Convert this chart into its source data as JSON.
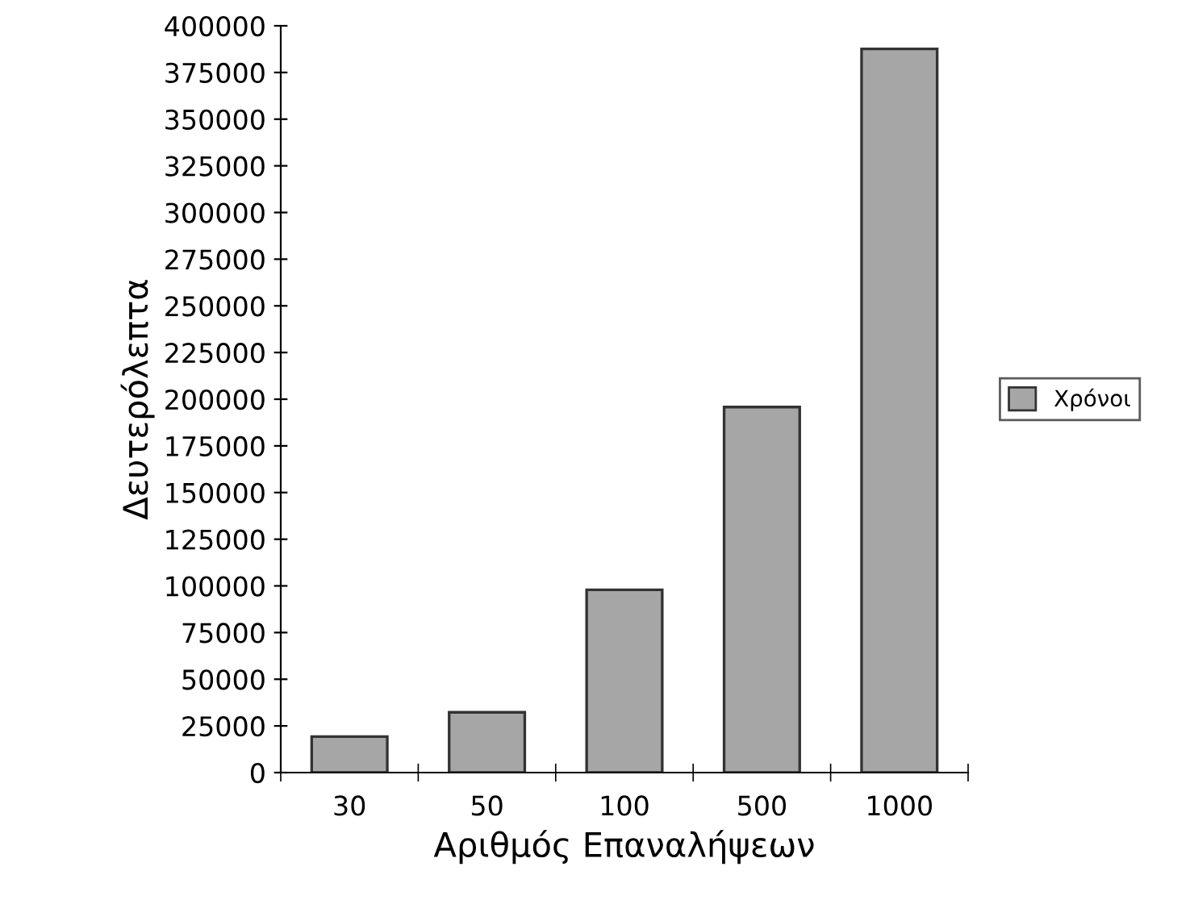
{
  "chart_data": {
    "type": "bar",
    "xlabel": "Αριθμός Επαναλήψεων",
    "ylabel": "Δευτερόλεπτα",
    "categories": [
      "30",
      "50",
      "100",
      "500",
      "1000"
    ],
    "series": [
      {
        "name": "Χρόνοι",
        "color": "#a6a6a6",
        "values": [
          19300,
          32300,
          97900,
          195800,
          387600
        ]
      }
    ],
    "ylim": [
      0,
      400000
    ],
    "yticks": [
      0,
      25000,
      50000,
      75000,
      100000,
      125000,
      150000,
      175000,
      200000,
      225000,
      250000,
      275000,
      300000,
      325000,
      350000,
      375000,
      400000
    ],
    "grid": false,
    "legend": "right"
  }
}
